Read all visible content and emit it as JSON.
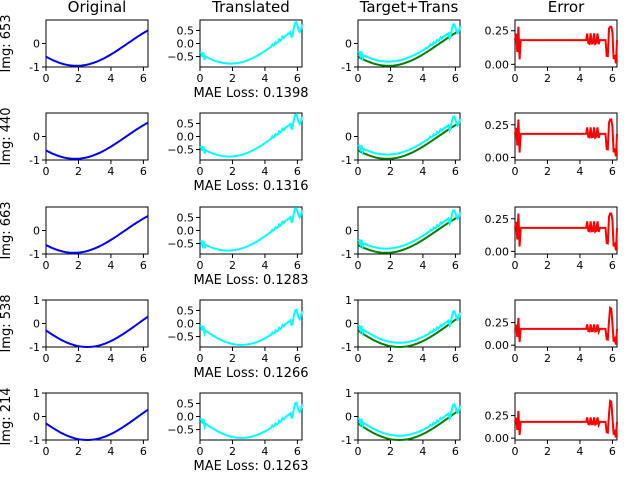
{
  "columns": [
    "Original",
    "Translated",
    "Target+Trans",
    "Error"
  ],
  "rows": [
    {
      "img_label": "Img: 653",
      "loss_text": "MAE Loss: 0.1398",
      "shape": {
        "phase": 0.55,
        "amp": 0.95,
        "shift": -0.02,
        "err_peak": 0.28
      }
    },
    {
      "img_label": "Img: 440",
      "loss_text": "MAE Loss: 0.1316",
      "shape": {
        "phase": 0.62,
        "amp": 0.95,
        "shift": -0.02,
        "err_peak": 0.29
      }
    },
    {
      "img_label": "Img: 663",
      "loss_text": "MAE Loss: 0.1283",
      "shape": {
        "phase": 0.68,
        "amp": 0.95,
        "shift": -0.02,
        "err_peak": 0.29
      }
    },
    {
      "img_label": "Img: 538",
      "loss_text": "MAE Loss: 0.1266",
      "shape": {
        "phase": 0.0,
        "amp": 1.0,
        "shift": -0.02,
        "err_peak": 0.45
      }
    },
    {
      "img_label": "Img: 214",
      "loss_text": "MAE Loss: 0.1263",
      "shape": {
        "phase": 0.0,
        "amp": 1.0,
        "shift": -0.02,
        "err_peak": 0.45
      }
    }
  ],
  "chart_data": {
    "type": "line",
    "x_range": [
      0,
      6.283
    ],
    "xticks": [
      0,
      2,
      4,
      6
    ],
    "panels": {
      "original": {
        "ylim": [
          -1,
          1
        ],
        "yticks_row": [
          [
            -1,
            0
          ],
          [
            -1,
            0
          ],
          [
            -1,
            0
          ],
          [
            -1,
            0,
            1
          ],
          [
            -1,
            0,
            1
          ]
        ]
      },
      "translated": {
        "ylim": [
          -0.9,
          0.9
        ],
        "yticks": [
          -0.5,
          0.0,
          0.5
        ],
        "tick_labels": [
          "−0.5",
          "0.0",
          "0.5"
        ]
      },
      "target_trans": {
        "ylim": [
          -1,
          1
        ],
        "yticks_row": [
          [
            -1,
            0
          ],
          [
            -1,
            0
          ],
          [
            -1,
            0
          ],
          [
            -1,
            0,
            1
          ],
          [
            -1,
            0,
            1
          ]
        ]
      },
      "error": {
        "yticks_row": [
          [
            0.0,
            0.25
          ],
          [
            0.0,
            0.25
          ],
          [
            0.0,
            0.25
          ],
          [
            0.0,
            0.25
          ],
          [
            0.0,
            0.25
          ]
        ],
        "tick_labels_row": [
          [
            "0.00",
            "0.25"
          ],
          [
            "0.00",
            "0.25"
          ],
          [
            "0.00",
            "0.25"
          ],
          [
            "0.00",
            "0.25"
          ],
          [
            "0.00",
            "0.25"
          ]
        ]
      }
    },
    "colors": {
      "original": "#0000ff",
      "translated": "#00ffff",
      "target": "#008000",
      "error": "#ff0000"
    }
  }
}
